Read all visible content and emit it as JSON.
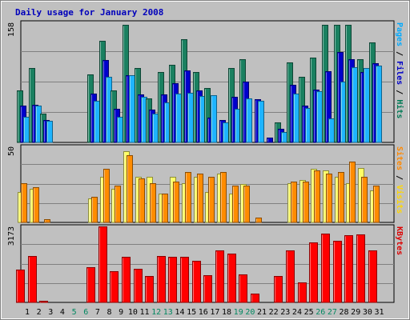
{
  "chart_data": {
    "type": "bar",
    "title": "Daily usage for January 2008",
    "days": [
      "1",
      "2",
      "3",
      "4",
      "5",
      "6",
      "7",
      "8",
      "9",
      "10",
      "11",
      "12",
      "13",
      "14",
      "15",
      "16",
      "17",
      "18",
      "19",
      "20",
      "21",
      "22",
      "23",
      "24",
      "25",
      "26",
      "27",
      "28",
      "29",
      "30",
      "31"
    ],
    "weekend_days": [
      "5",
      "6",
      "12",
      "13",
      "19",
      "20",
      "26",
      "27"
    ],
    "panels": [
      {
        "id": "hits",
        "ymax_label": "158",
        "ymax": 158,
        "right_label": [
          {
            "text": "Pages",
            "color": "#00aaff"
          },
          {
            "text": " / ",
            "color": "#000000"
          },
          {
            "text": "Files",
            "color": "#0000c8"
          },
          {
            "text": " / ",
            "color": "#000000"
          },
          {
            "text": "Hits",
            "color": "#007a55"
          }
        ],
        "series": [
          {
            "name": "Hits",
            "color": "#1a8060",
            "values": [
              68,
              98,
              38,
              0,
              0,
              0,
              90,
              134,
              68,
              155,
              98,
              58,
              93,
              102,
              136,
              93,
              72,
              0,
              98,
              110,
              0,
              0,
              26,
              105,
              86,
              112,
              155,
              155,
              155,
              110,
              132
            ]
          },
          {
            "name": "Files",
            "color": "#0000cc",
            "values": [
              48,
              50,
              30,
              0,
              0,
              0,
              64,
              108,
              44,
              88,
              63,
              43,
              63,
              78,
              95,
              68,
              33,
              30,
              60,
              80,
              57,
              6,
              18,
              76,
              48,
              70,
              94,
              119,
              110,
              93,
              104
            ]
          },
          {
            "name": "Pages",
            "color": "#1eb4ff",
            "values": [
              34,
              48,
              28,
              0,
              0,
              0,
              55,
              86,
              34,
              88,
              60,
              38,
              53,
              64,
              65,
              61,
              62,
              26,
              44,
              58,
              55,
              0,
              14,
              64,
              45,
              67,
              32,
              80,
              99,
              98,
              101
            ]
          }
        ]
      },
      {
        "id": "visits",
        "ymax_label": "50",
        "ymax": 50,
        "right_label": [
          {
            "text": "Sites",
            "color": "#ff8800"
          },
          {
            "text": " / ",
            "color": "#000000"
          },
          {
            "text": "Visits",
            "color": "#ffd700"
          }
        ],
        "series": [
          {
            "name": "Visits",
            "color": "#ffff66",
            "values": [
              20,
              22,
              0,
              0,
              0,
              0,
              16,
              30,
              22,
              47,
              30,
              30,
              19,
              30,
              26,
              30,
              20,
              32,
              19,
              25,
              0,
              0,
              0,
              26,
              28,
              35,
              34,
              30,
              26,
              36,
              21
            ]
          },
          {
            "name": "Sites",
            "color": "#ff8c00",
            "values": [
              26,
              23,
              2,
              0,
              0,
              0,
              17,
              35,
              24,
              44,
              29,
              26,
              19,
              27,
              33,
              32,
              30,
              33,
              24,
              24,
              3,
              0,
              0,
              27,
              27,
              34,
              32,
              33,
              40,
              30,
              24
            ]
          }
        ]
      },
      {
        "id": "kbytes",
        "ymax_label": "3173",
        "ymax": 3173,
        "right_label": [
          {
            "text": "KBytes",
            "color": "#dd0000"
          }
        ],
        "series": [
          {
            "name": "KBytes",
            "color": "#ff0000",
            "values": [
              1380,
              1950,
              50,
              0,
              0,
              0,
              1460,
              3173,
              1300,
              1900,
              1400,
              1100,
              1950,
              1890,
              1910,
              1750,
              1150,
              2180,
              2050,
              1160,
              370,
              0,
              1100,
              2180,
              820,
              2520,
              2880,
              2580,
              2800,
              2850,
              2180
            ]
          }
        ]
      }
    ]
  }
}
